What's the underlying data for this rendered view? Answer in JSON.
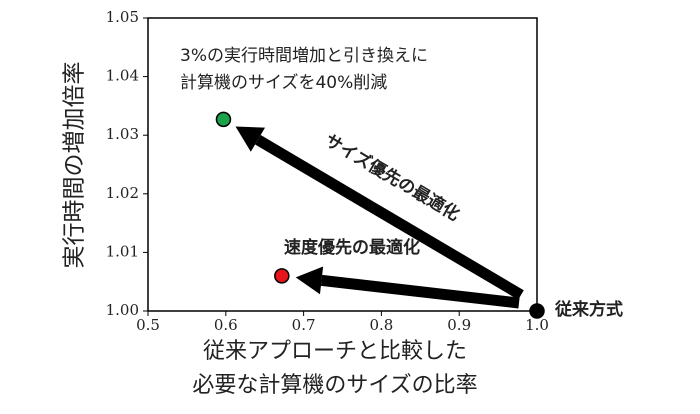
{
  "chart_data": {
    "type": "scatter",
    "xlabel": [
      "従来アプローチと比較した",
      "必要な計算機のサイズの比率"
    ],
    "ylabel": "実行時間の増加倍率",
    "annotation": [
      "3%の実行時間増加と引き換えに",
      "計算機のサイズを40%削減"
    ],
    "series": [
      {
        "name": "従来方式",
        "color": "#000000",
        "x": [
          1.0
        ],
        "values": [
          1.0
        ]
      },
      {
        "name": "サイズ優先の最適化",
        "color": "#1aa34a",
        "x": [
          0.597
        ],
        "values": [
          1.0327
        ]
      },
      {
        "name": "速度優先の最適化",
        "color": "#e8141b",
        "x": [
          0.672
        ],
        "values": [
          1.006
        ]
      }
    ],
    "xlim": [
      0.5,
      1.0
    ],
    "ylim": [
      1.0,
      1.05
    ],
    "xticks": [
      0.5,
      0.6,
      0.7,
      0.8,
      0.9,
      {
        "value": 1.0,
        "label": "1.0"
      }
    ],
    "yticks": [
      {
        "value": 1.0,
        "label": "1.00"
      },
      1.01,
      1.02,
      1.03,
      1.04,
      1.05
    ]
  }
}
